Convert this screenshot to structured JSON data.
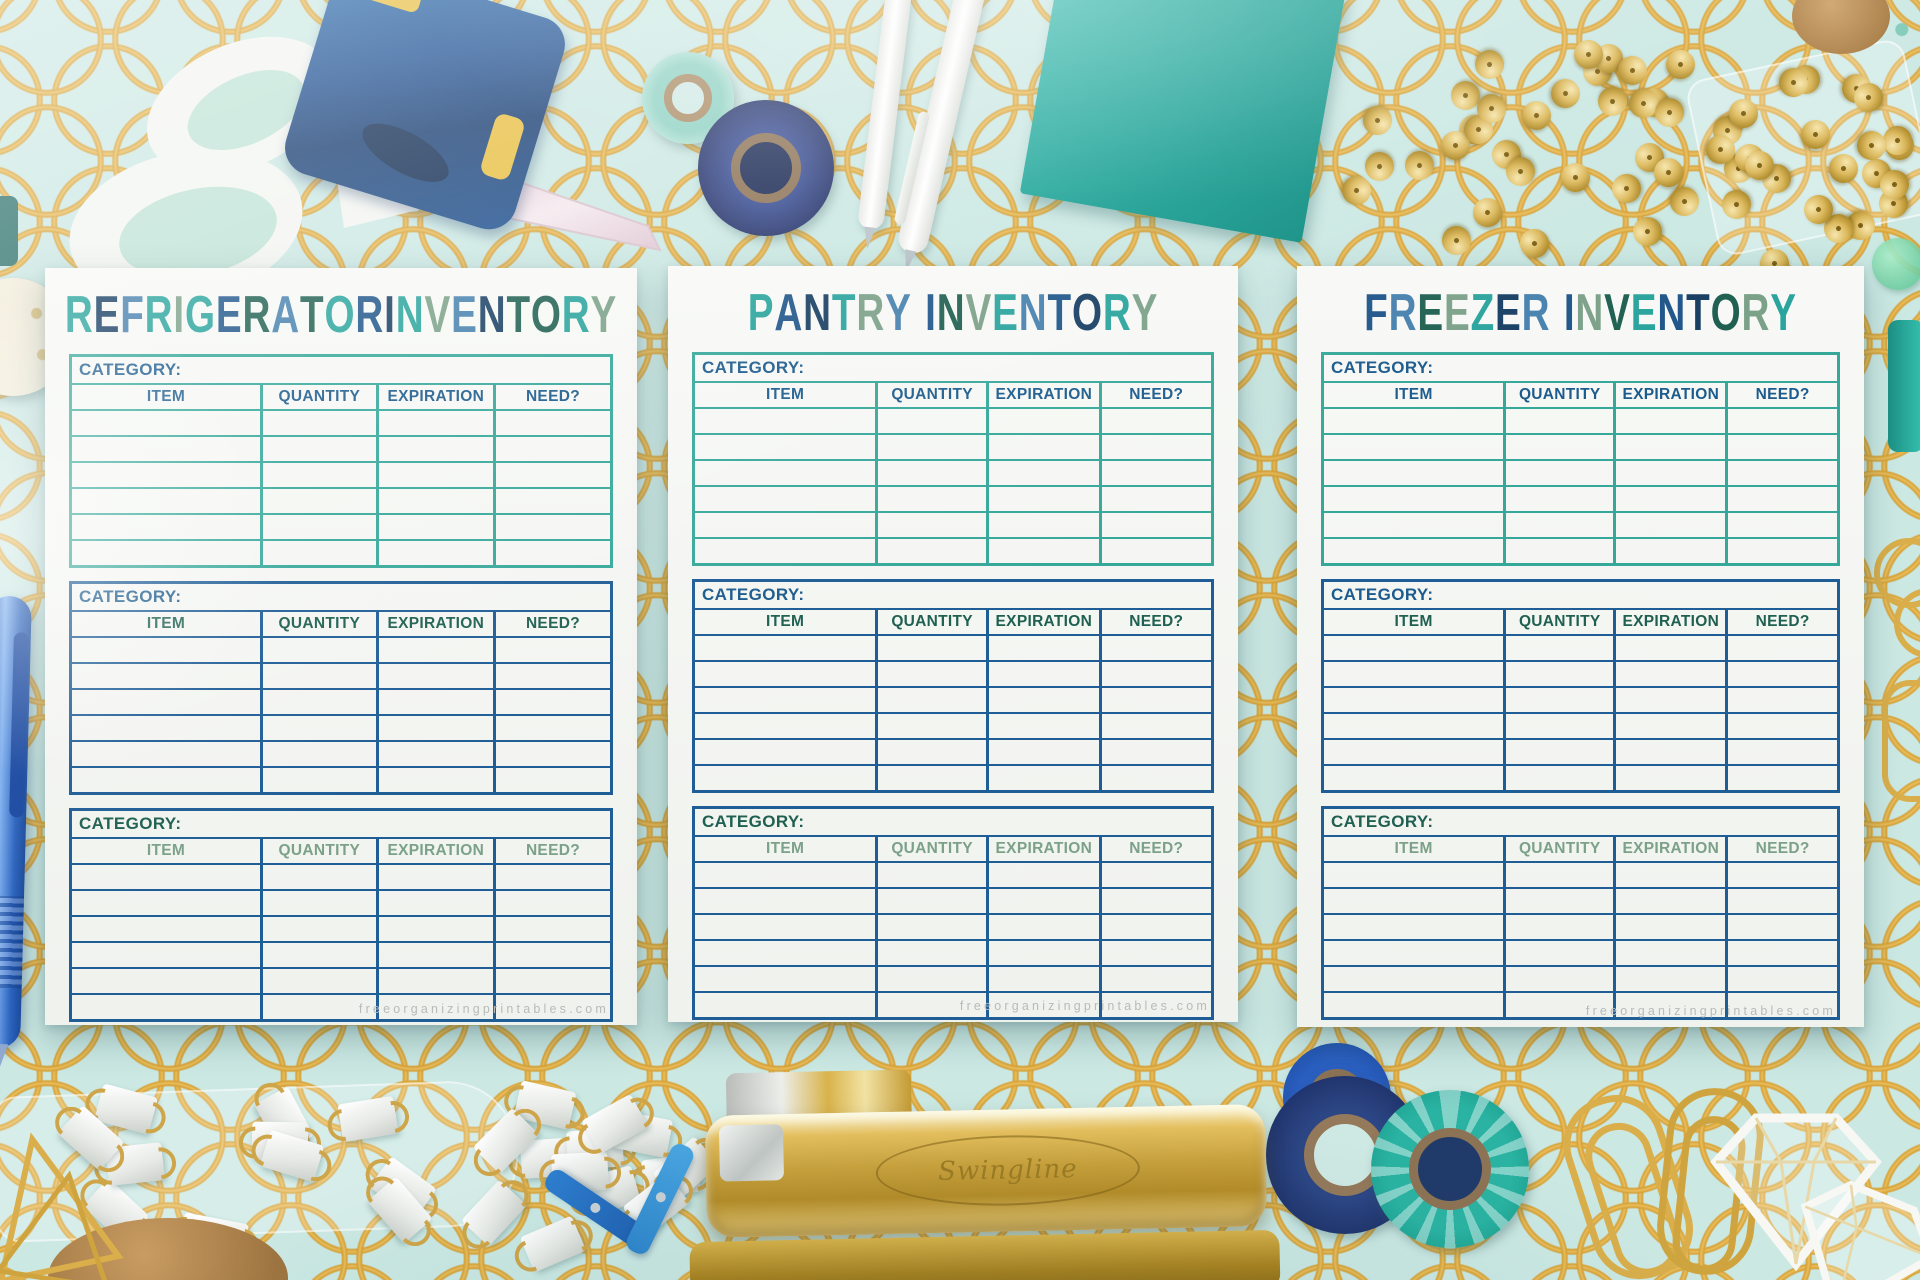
{
  "palette": {
    "background_aqua": "#cbe8e3",
    "pattern_gold": "#d7a238",
    "paper_white": "#f5f6f3",
    "teal": "#2aa49d",
    "navy": "#20568a",
    "blue": "#4781ae",
    "sage_green": "#7ca189",
    "dark_green": "#1f6051",
    "dark_navy": "#183f63",
    "navy_text": "#1c5b8d",
    "border_teal": "#36a89a",
    "border_navy": "#1f5d96",
    "footer_gray": "#b7bbb9",
    "sticky_note_teal": "#23b0a2",
    "stapler_gold": "#caa23c"
  },
  "table_template": {
    "category_label": "CATEGORY:",
    "columns": [
      "ITEM",
      "QUANTITY",
      "EXPIRATION",
      "NEED?"
    ],
    "rows_per_section": 6,
    "section_styles": [
      {
        "border": "border_teal",
        "category": "navy_text",
        "headers": "navy_text"
      },
      {
        "border": "border_navy",
        "category": "navy_text",
        "headers": "dark_green"
      },
      {
        "border": "border_navy",
        "category": "dark_green",
        "headers": "sage_green"
      }
    ]
  },
  "sheets": [
    {
      "title": "REFRIGERATOR INVENTORY",
      "letter_colors": [
        "teal",
        "dark_navy",
        "blue",
        "teal",
        "sage_green",
        "teal",
        "navy",
        "dark_green",
        "blue",
        "dark_green",
        "teal",
        "navy",
        null,
        "dark_navy",
        "teal",
        "sage_green",
        "blue",
        "dark_navy",
        "dark_green",
        "dark_green",
        "teal",
        "sage_green"
      ],
      "footer": "freeorganizingprintables.com"
    },
    {
      "title": "PANTRY INVENTORY",
      "letter_colors": [
        "teal",
        "navy",
        "dark_navy",
        "teal",
        "sage_green",
        "blue",
        null,
        "navy",
        "dark_green",
        "sage_green",
        "teal",
        "blue",
        "navy",
        "dark_navy",
        "teal",
        "sage_green"
      ],
      "footer": "freeorganizingprintables.com"
    },
    {
      "title": "FREEZER INVENTORY",
      "letter_colors": [
        "navy",
        "blue",
        "dark_green",
        "sage_green",
        "teal",
        "dark_navy",
        "blue",
        null,
        "navy",
        "sage_green",
        "dark_green",
        "teal",
        "navy",
        "dark_navy",
        "dark_green",
        "sage_green",
        "teal"
      ],
      "footer": "freeorganizingprintables.com"
    }
  ],
  "stapler": {
    "brand": "Swingline"
  }
}
